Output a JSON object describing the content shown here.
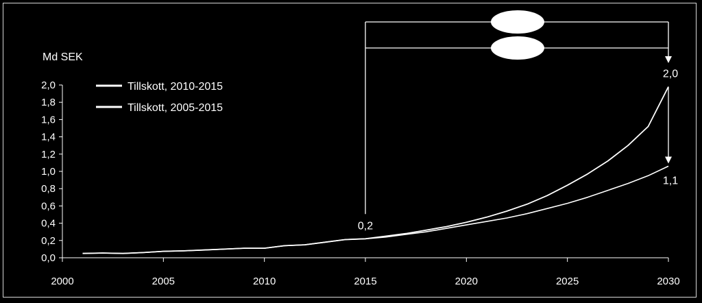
{
  "chart_data": {
    "type": "line",
    "ylabel": "Md SEK",
    "xlim": [
      2000,
      2030
    ],
    "ylim": [
      0,
      2.0
    ],
    "x_ticks": [
      "2000",
      "2005",
      "2010",
      "2015",
      "2020",
      "2025",
      "2030"
    ],
    "y_ticks": [
      "0,0",
      "0,2",
      "0,4",
      "0,6",
      "0,8",
      "1,0",
      "1,2",
      "1,4",
      "1,6",
      "1,8",
      "2,0"
    ],
    "legend_position": "top-left",
    "grid": false,
    "series": [
      {
        "name": "Tillskott, 2010-2015",
        "x": [
          2001,
          2002,
          2003,
          2004,
          2005,
          2006,
          2007,
          2008,
          2009,
          2010,
          2011,
          2012,
          2013,
          2014,
          2015,
          2016,
          2017,
          2018,
          2019,
          2020,
          2021,
          2022,
          2023,
          2024,
          2025,
          2026,
          2027,
          2028,
          2029,
          2030
        ],
        "values": [
          0.05,
          0.055,
          0.05,
          0.06,
          0.075,
          0.08,
          0.09,
          0.1,
          0.11,
          0.11,
          0.14,
          0.15,
          0.18,
          0.21,
          0.22,
          0.25,
          0.28,
          0.32,
          0.36,
          0.41,
          0.47,
          0.54,
          0.62,
          0.72,
          0.84,
          0.97,
          1.12,
          1.3,
          1.52,
          1.98
        ]
      },
      {
        "name": "Tillskott, 2005-2015",
        "x": [
          2001,
          2002,
          2003,
          2004,
          2005,
          2006,
          2007,
          2008,
          2009,
          2010,
          2011,
          2012,
          2013,
          2014,
          2015,
          2016,
          2017,
          2018,
          2019,
          2020,
          2021,
          2022,
          2023,
          2024,
          2025,
          2026,
          2027,
          2028,
          2029,
          2030
        ],
        "values": [
          0.05,
          0.055,
          0.05,
          0.06,
          0.075,
          0.08,
          0.09,
          0.1,
          0.11,
          0.11,
          0.14,
          0.15,
          0.18,
          0.21,
          0.22,
          0.24,
          0.27,
          0.3,
          0.34,
          0.38,
          0.42,
          0.46,
          0.51,
          0.57,
          0.63,
          0.7,
          0.78,
          0.86,
          0.95,
          1.06
        ]
      }
    ],
    "annotations": [
      {
        "text": "0,2",
        "x": 2015,
        "y": 0.22
      },
      {
        "text": "2,0",
        "x": 2030,
        "y": 1.98
      },
      {
        "text": "1,1",
        "x": 2030,
        "y": 1.06
      }
    ]
  },
  "colors": {
    "background": "#000000",
    "line": "#ffffff",
    "frame": "#d9d9d9"
  }
}
